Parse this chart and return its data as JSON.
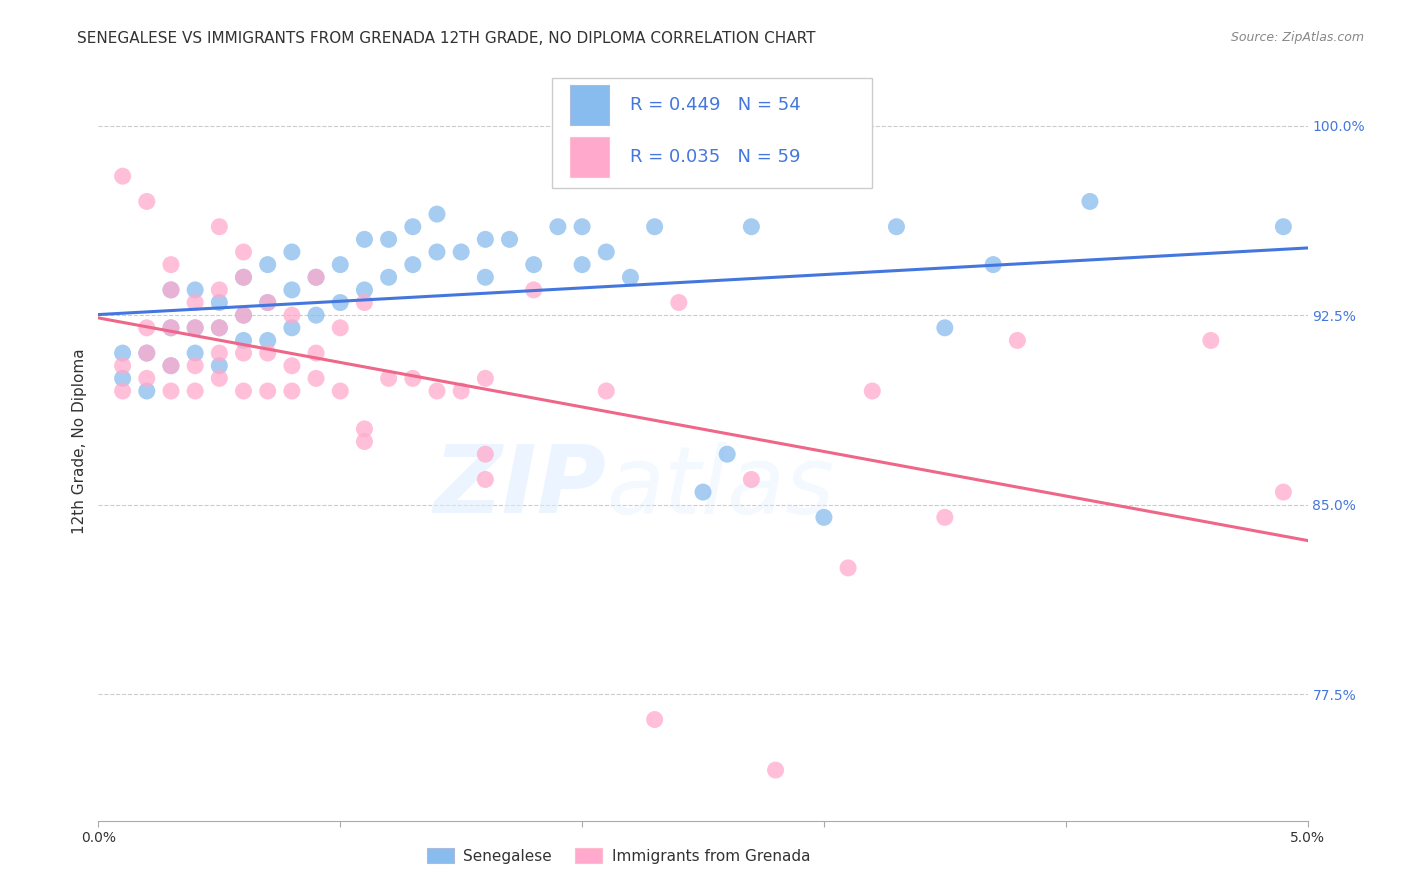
{
  "title": "SENEGALESE VS IMMIGRANTS FROM GRENADA 12TH GRADE, NO DIPLOMA CORRELATION CHART",
  "source": "Source: ZipAtlas.com",
  "ylabel": "12th Grade, No Diploma",
  "ytick_labels": [
    "77.5%",
    "85.0%",
    "92.5%",
    "100.0%"
  ],
  "ytick_values": [
    0.775,
    0.85,
    0.925,
    1.0
  ],
  "xlim": [
    0.0,
    0.05
  ],
  "ylim": [
    0.725,
    1.025
  ],
  "legend_r1": "R = 0.449",
  "legend_n1": "N = 54",
  "legend_r2": "R = 0.035",
  "legend_n2": "N = 59",
  "blue_color": "#88BBEE",
  "pink_color": "#FFAACC",
  "line_blue": "#4477DD",
  "line_pink": "#EE6688",
  "label_color": "#4477DD",
  "blue_scatter": [
    [
      0.001,
      0.9
    ],
    [
      0.001,
      0.91
    ],
    [
      0.002,
      0.895
    ],
    [
      0.002,
      0.91
    ],
    [
      0.003,
      0.905
    ],
    [
      0.003,
      0.92
    ],
    [
      0.003,
      0.935
    ],
    [
      0.004,
      0.91
    ],
    [
      0.004,
      0.92
    ],
    [
      0.004,
      0.935
    ],
    [
      0.005,
      0.905
    ],
    [
      0.005,
      0.92
    ],
    [
      0.005,
      0.93
    ],
    [
      0.006,
      0.915
    ],
    [
      0.006,
      0.925
    ],
    [
      0.006,
      0.94
    ],
    [
      0.007,
      0.915
    ],
    [
      0.007,
      0.93
    ],
    [
      0.007,
      0.945
    ],
    [
      0.008,
      0.92
    ],
    [
      0.008,
      0.935
    ],
    [
      0.008,
      0.95
    ],
    [
      0.009,
      0.925
    ],
    [
      0.009,
      0.94
    ],
    [
      0.01,
      0.93
    ],
    [
      0.01,
      0.945
    ],
    [
      0.011,
      0.935
    ],
    [
      0.011,
      0.955
    ],
    [
      0.012,
      0.94
    ],
    [
      0.012,
      0.955
    ],
    [
      0.013,
      0.945
    ],
    [
      0.013,
      0.96
    ],
    [
      0.014,
      0.95
    ],
    [
      0.014,
      0.965
    ],
    [
      0.015,
      0.95
    ],
    [
      0.016,
      0.94
    ],
    [
      0.016,
      0.955
    ],
    [
      0.017,
      0.955
    ],
    [
      0.018,
      0.945
    ],
    [
      0.019,
      0.96
    ],
    [
      0.02,
      0.945
    ],
    [
      0.02,
      0.96
    ],
    [
      0.021,
      0.95
    ],
    [
      0.022,
      0.94
    ],
    [
      0.023,
      0.96
    ],
    [
      0.025,
      0.855
    ],
    [
      0.026,
      0.87
    ],
    [
      0.027,
      0.96
    ],
    [
      0.03,
      0.845
    ],
    [
      0.033,
      0.96
    ],
    [
      0.035,
      0.92
    ],
    [
      0.037,
      0.945
    ],
    [
      0.041,
      0.97
    ],
    [
      0.049,
      0.96
    ]
  ],
  "pink_scatter": [
    [
      0.001,
      0.895
    ],
    [
      0.001,
      0.905
    ],
    [
      0.001,
      0.98
    ],
    [
      0.002,
      0.9
    ],
    [
      0.002,
      0.91
    ],
    [
      0.002,
      0.92
    ],
    [
      0.002,
      0.97
    ],
    [
      0.003,
      0.895
    ],
    [
      0.003,
      0.905
    ],
    [
      0.003,
      0.92
    ],
    [
      0.003,
      0.935
    ],
    [
      0.003,
      0.945
    ],
    [
      0.004,
      0.895
    ],
    [
      0.004,
      0.905
    ],
    [
      0.004,
      0.92
    ],
    [
      0.004,
      0.93
    ],
    [
      0.005,
      0.9
    ],
    [
      0.005,
      0.91
    ],
    [
      0.005,
      0.92
    ],
    [
      0.005,
      0.935
    ],
    [
      0.005,
      0.96
    ],
    [
      0.006,
      0.895
    ],
    [
      0.006,
      0.91
    ],
    [
      0.006,
      0.925
    ],
    [
      0.006,
      0.94
    ],
    [
      0.006,
      0.95
    ],
    [
      0.007,
      0.895
    ],
    [
      0.007,
      0.91
    ],
    [
      0.007,
      0.93
    ],
    [
      0.008,
      0.895
    ],
    [
      0.008,
      0.905
    ],
    [
      0.008,
      0.925
    ],
    [
      0.009,
      0.9
    ],
    [
      0.009,
      0.91
    ],
    [
      0.009,
      0.94
    ],
    [
      0.01,
      0.895
    ],
    [
      0.01,
      0.92
    ],
    [
      0.011,
      0.875
    ],
    [
      0.011,
      0.88
    ],
    [
      0.011,
      0.93
    ],
    [
      0.012,
      0.9
    ],
    [
      0.013,
      0.9
    ],
    [
      0.014,
      0.895
    ],
    [
      0.015,
      0.895
    ],
    [
      0.016,
      0.86
    ],
    [
      0.016,
      0.87
    ],
    [
      0.016,
      0.9
    ],
    [
      0.018,
      0.935
    ],
    [
      0.021,
      0.895
    ],
    [
      0.023,
      0.765
    ],
    [
      0.024,
      0.93
    ],
    [
      0.027,
      0.86
    ],
    [
      0.028,
      0.745
    ],
    [
      0.031,
      0.825
    ],
    [
      0.032,
      0.895
    ],
    [
      0.035,
      0.845
    ],
    [
      0.038,
      0.915
    ],
    [
      0.046,
      0.915
    ],
    [
      0.049,
      0.855
    ]
  ],
  "watermark_zip": "ZIP",
  "watermark_atlas": "atlas",
  "title_fontsize": 11,
  "axis_label_fontsize": 11,
  "tick_fontsize": 10,
  "legend_fontsize": 13
}
